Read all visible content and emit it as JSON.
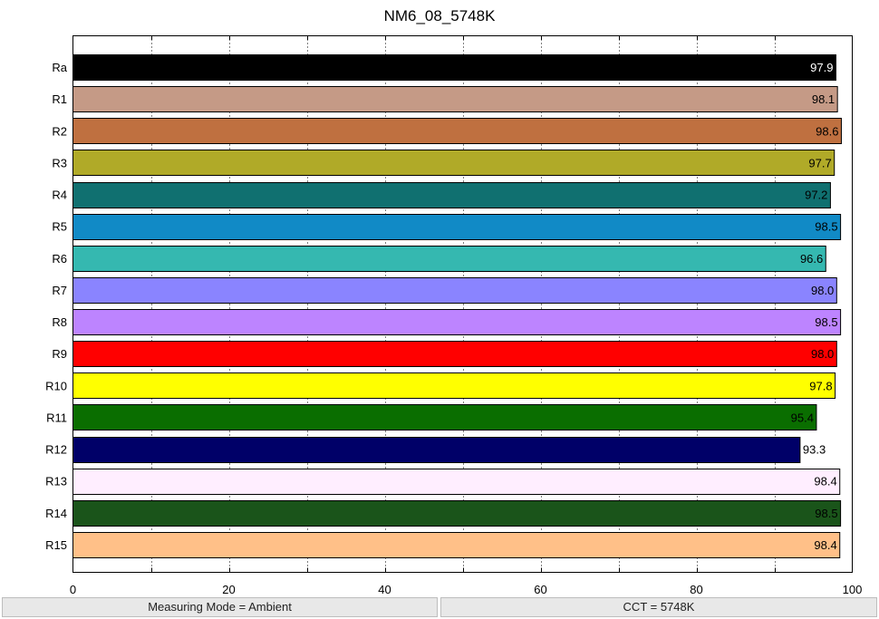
{
  "title": "NM6_08_5748K",
  "status": {
    "measuring_mode": "Measuring Mode = Ambient",
    "cct": "CCT = 5748K"
  },
  "chart_data": {
    "type": "bar",
    "orientation": "horizontal",
    "title": "NM6_08_5748K",
    "xlim": [
      0,
      100
    ],
    "x_ticks": [
      0,
      20,
      40,
      60,
      80,
      100
    ],
    "minor_grid_ticks": [
      10,
      20,
      30,
      40,
      50,
      60,
      70,
      80,
      90
    ],
    "grid": "vertical dotted",
    "categories": [
      "Ra",
      "R1",
      "R2",
      "R3",
      "R4",
      "R5",
      "R6",
      "R7",
      "R8",
      "R9",
      "R10",
      "R11",
      "R12",
      "R13",
      "R14",
      "R15"
    ],
    "values": [
      97.9,
      98.1,
      98.6,
      97.7,
      97.2,
      98.5,
      96.6,
      98.0,
      98.5,
      98.0,
      97.8,
      95.4,
      93.3,
      98.4,
      98.5,
      98.4
    ],
    "value_labels": [
      "97.9",
      "98.1",
      "98.6",
      "97.7",
      "97.2",
      "98.5",
      "96.6",
      "98.0",
      "98.5",
      "98.0",
      "97.8",
      "95.4",
      "93.3",
      "98.4",
      "98.5",
      "98.4"
    ],
    "colors": [
      "#000000",
      "#c59a86",
      "#bf7040",
      "#b0aa28",
      "#107070",
      "#118ac6",
      "#35b8b0",
      "#8a84ff",
      "#bd84ff",
      "#ff0000",
      "#ffff00",
      "#0a6e00",
      "#000068",
      "#ffeeff",
      "#1a541a",
      "#ffc088"
    ],
    "label_colors": [
      "#ffffff",
      "#000000",
      "#000000",
      "#000000",
      "#000000",
      "#000000",
      "#000000",
      "#000000",
      "#000000",
      "#000000",
      "#000000",
      "#000000",
      "#000000",
      "#000000",
      "#000000",
      "#000000"
    ]
  }
}
